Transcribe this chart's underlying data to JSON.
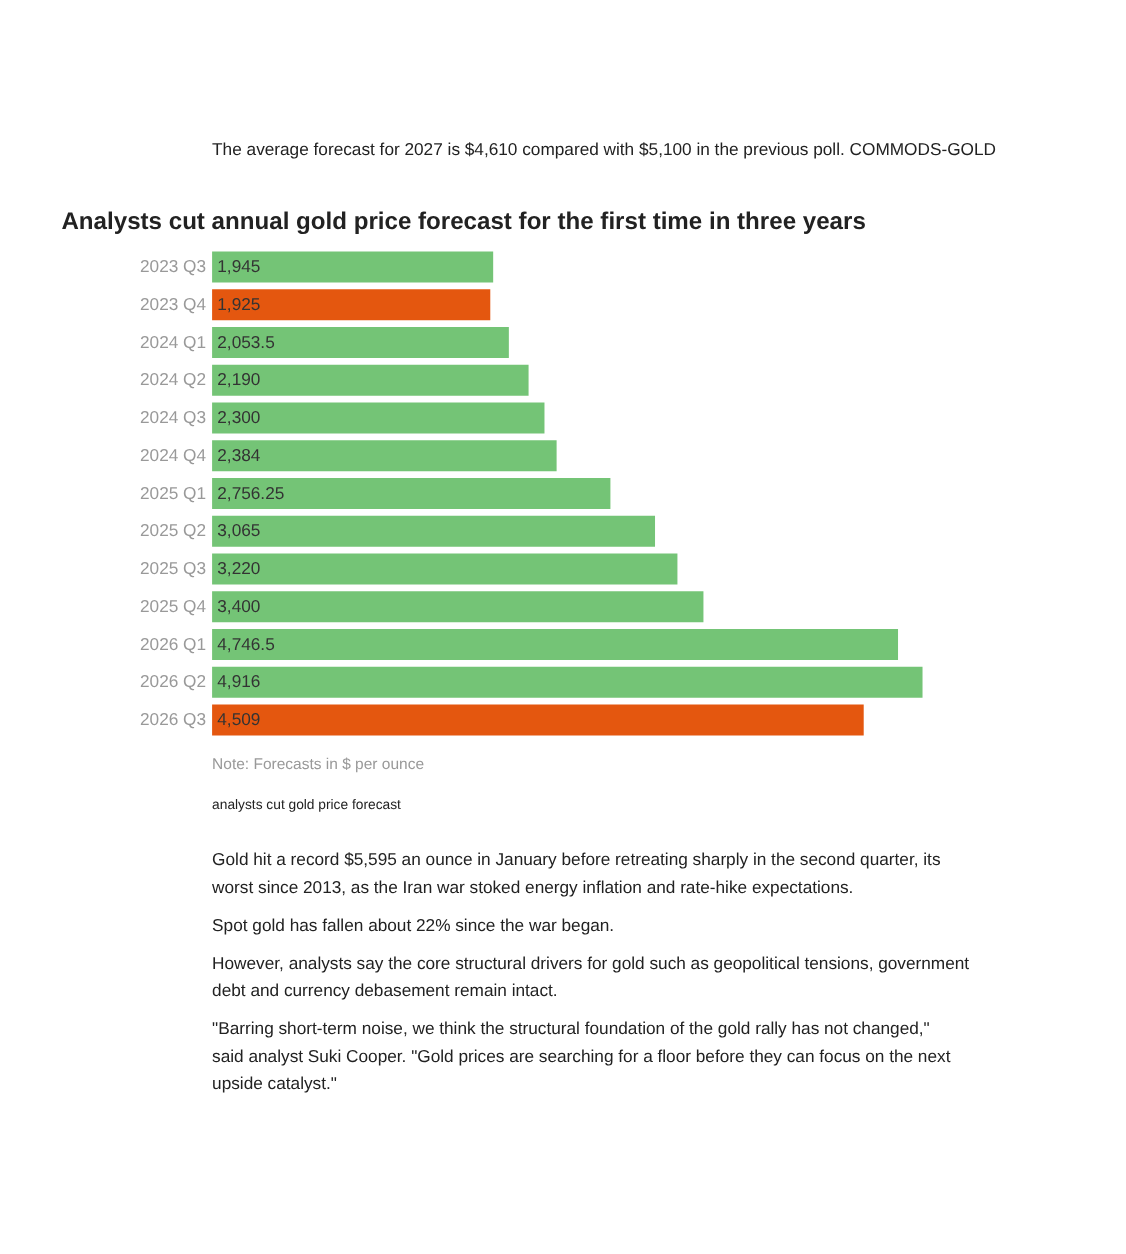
{
  "chart_data": {
    "type": "bar",
    "orientation": "horizontal",
    "title": "Analysts cut annual gold price forecast for the first time in three years",
    "categories": [
      "2023 Q3",
      "2023 Q4",
      "2024 Q1",
      "2024 Q2",
      "2024 Q3",
      "2024 Q4",
      "2025 Q1",
      "2025 Q2",
      "2025 Q3",
      "2025 Q4",
      "2026 Q1",
      "2026 Q2",
      "2026 Q3"
    ],
    "values": [
      1945,
      1925,
      2053.5,
      2190,
      2300,
      2384,
      2756.25,
      3065,
      3220,
      3400,
      4746.5,
      4916,
      4509
    ],
    "colors": [
      "#74c476",
      "#e4570f",
      "#74c476",
      "#74c476",
      "#74c476",
      "#74c476",
      "#74c476",
      "#74c476",
      "#74c476",
      "#74c476",
      "#74c476",
      "#74c476",
      "#e4570f"
    ],
    "value_labels": [
      "1,945",
      "1,925",
      "2,053.5",
      "2,190",
      "2,300",
      "2,384",
      "2,756.25",
      "3,065",
      "3,220",
      "3,400",
      "4,746.5",
      "4,916",
      "4,509"
    ],
    "annotations": [
      "The average forecast for 2027 is $4,610 compared with $5,100 in the previous poll. COMMODS-GOLD",
      "Note: Forecasts in $ per ounce",
      "analysts cut gold price forecast",
      "Gold hit a record $5,595 an ounce in January before retreating sharply in the second quarter, its worst since 2013, as the Iran war stoked energy inflation and rate-hike expectations.",
      "Spot gold has fallen about 22% since the war began.",
      "However, analysts say the core structural drivers for gold such as geopolitical tensions, government debt and currency debasement remain intact.",
      "\"Barring short-term noise, we think the structural foundation of the gold rally has not changed,\" said analyst Suki Cooper. \"Gold prices are searching for a floor before they can focus on the next upside catalyst.\""
    ]
  }
}
